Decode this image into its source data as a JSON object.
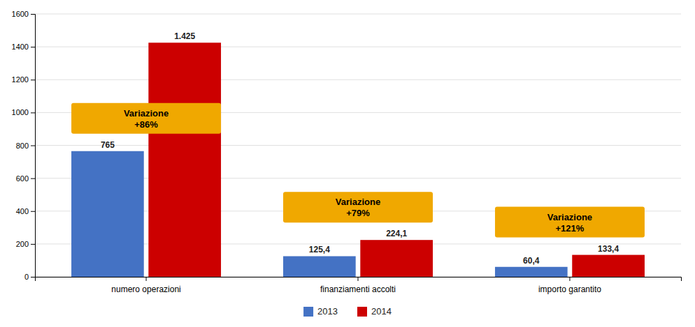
{
  "chart_data": {
    "type": "bar",
    "categories": [
      "numero operazioni",
      "finanziamenti accolti",
      "importo garantito"
    ],
    "series": [
      {
        "name": "2013",
        "color": "#4472C4",
        "values": [
          765,
          125.4,
          60.4
        ],
        "value_labels": [
          "765",
          "125,4",
          "60,4"
        ]
      },
      {
        "name": "2014",
        "color": "#CC0000",
        "values": [
          1425,
          224.1,
          133.4
        ],
        "value_labels": [
          "1.425",
          "224,1",
          "133,4"
        ]
      }
    ],
    "ylim": [
      0,
      1600
    ],
    "yticks": [
      0,
      200,
      400,
      600,
      800,
      1000,
      1200,
      1400,
      1600
    ],
    "grid": true,
    "data_labels": true,
    "legend": "bottom",
    "annotations": [
      "Variazione\n+86%",
      "Variazione\n+79%",
      "Variazione\n+121%"
    ]
  }
}
